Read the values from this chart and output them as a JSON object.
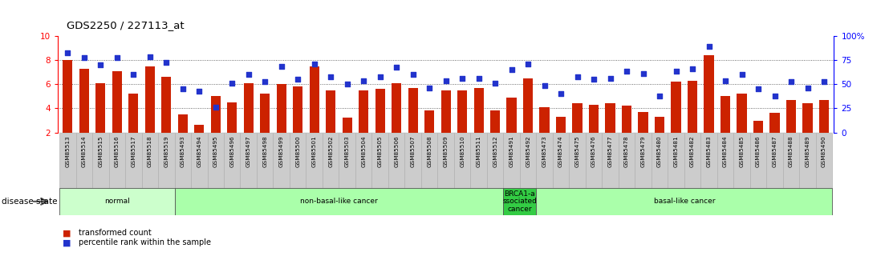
{
  "title": "GDS2250 / 227113_at",
  "samples": [
    "GSM85513",
    "GSM85514",
    "GSM85515",
    "GSM85516",
    "GSM85517",
    "GSM85518",
    "GSM85519",
    "GSM85493",
    "GSM85494",
    "GSM85495",
    "GSM85496",
    "GSM85497",
    "GSM85498",
    "GSM85499",
    "GSM85500",
    "GSM85501",
    "GSM85502",
    "GSM85503",
    "GSM85504",
    "GSM85505",
    "GSM85506",
    "GSM85507",
    "GSM85508",
    "GSM85509",
    "GSM85510",
    "GSM85511",
    "GSM85512",
    "GSM85491",
    "GSM85492",
    "GSM85473",
    "GSM85474",
    "GSM85475",
    "GSM85476",
    "GSM85477",
    "GSM85478",
    "GSM85479",
    "GSM85480",
    "GSM85481",
    "GSM85482",
    "GSM85483",
    "GSM85484",
    "GSM85485",
    "GSM85486",
    "GSM85487",
    "GSM85488",
    "GSM85489",
    "GSM85490"
  ],
  "bar_values": [
    8.0,
    7.3,
    6.1,
    7.1,
    5.2,
    7.5,
    6.6,
    3.5,
    2.65,
    5.0,
    4.5,
    6.1,
    5.2,
    6.0,
    5.8,
    7.5,
    5.5,
    3.2,
    5.5,
    5.6,
    6.1,
    5.7,
    3.8,
    5.5,
    5.5,
    5.7,
    3.8,
    4.9,
    6.5,
    4.1,
    3.3,
    4.4,
    4.3,
    4.4,
    4.2,
    3.7,
    3.3,
    6.2,
    6.3,
    8.4,
    5.0,
    5.2,
    3.0,
    3.6,
    4.7,
    4.4,
    4.7
  ],
  "scatter_values_left": [
    8.6,
    8.2,
    7.6,
    8.2,
    6.8,
    8.3,
    7.8,
    5.6,
    5.4,
    4.1,
    6.1,
    6.8,
    6.2,
    7.5,
    6.4,
    7.7,
    6.6,
    6.0,
    6.3,
    6.6,
    7.4,
    6.8,
    5.7,
    6.3,
    6.5,
    6.5,
    6.1,
    7.2,
    7.7,
    5.9,
    5.2,
    6.6,
    6.4,
    6.5,
    7.1,
    6.9,
    5.0,
    7.1,
    7.3,
    9.1,
    6.3,
    6.8,
    5.6,
    5.0,
    6.2,
    5.7,
    6.2
  ],
  "groups": [
    {
      "label": "normal",
      "start": 0,
      "end": 7,
      "color": "#ccffcc"
    },
    {
      "label": "non-basal-like cancer",
      "start": 7,
      "end": 27,
      "color": "#aaffaa"
    },
    {
      "label": "BRCA1-a\nssociated\ncancer",
      "start": 27,
      "end": 29,
      "color": "#33cc44"
    },
    {
      "label": "basal-like cancer",
      "start": 29,
      "end": 47,
      "color": "#aaffaa"
    }
  ],
  "left_ylim": [
    2,
    10
  ],
  "left_yticks": [
    2,
    4,
    6,
    8,
    10
  ],
  "right_ylim": [
    0,
    100
  ],
  "right_yticks": [
    0,
    25,
    50,
    75,
    100
  ],
  "right_yticklabels": [
    "0",
    "25",
    "50",
    "75",
    "100%"
  ],
  "bar_color": "#cc2200",
  "scatter_color": "#2233cc",
  "grid_values": [
    4,
    6,
    8
  ],
  "disease_state_label": "disease state",
  "legend_bar_label": "transformed count",
  "legend_scatter_label": "percentile rank within the sample",
  "tick_box_color": "#cccccc",
  "tick_box_edge_color": "#aaaaaa"
}
